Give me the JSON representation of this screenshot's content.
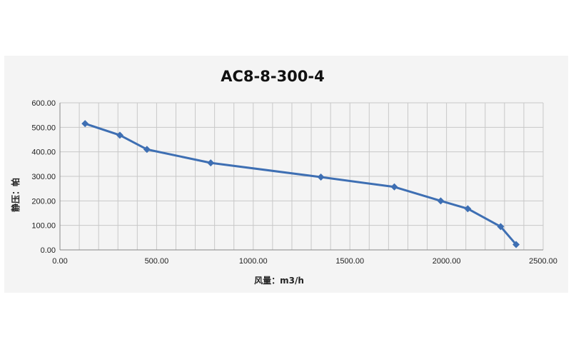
{
  "chart_data": {
    "type": "line",
    "title": "AC8-8-300-4",
    "xlabel": "风量：m3/h",
    "ylabel": "静压：帕",
    "xlim": [
      0,
      2500
    ],
    "ylim": [
      0,
      600
    ],
    "x_ticks": [
      "0.00",
      "500.00",
      "1000.00",
      "1500.00",
      "2000.00",
      "2500.00"
    ],
    "y_ticks": [
      "0.00",
      "100.00",
      "200.00",
      "300.00",
      "400.00",
      "500.00",
      "600.00"
    ],
    "grid": true,
    "legend": "none",
    "series": [
      {
        "color": "#3e6fb3",
        "marker": "diamond",
        "x": [
          130,
          310,
          450,
          780,
          1350,
          1730,
          1970,
          2110,
          2280,
          2360
        ],
        "y": [
          515,
          468,
          410,
          355,
          297,
          257,
          200,
          168,
          95,
          22
        ]
      }
    ]
  }
}
